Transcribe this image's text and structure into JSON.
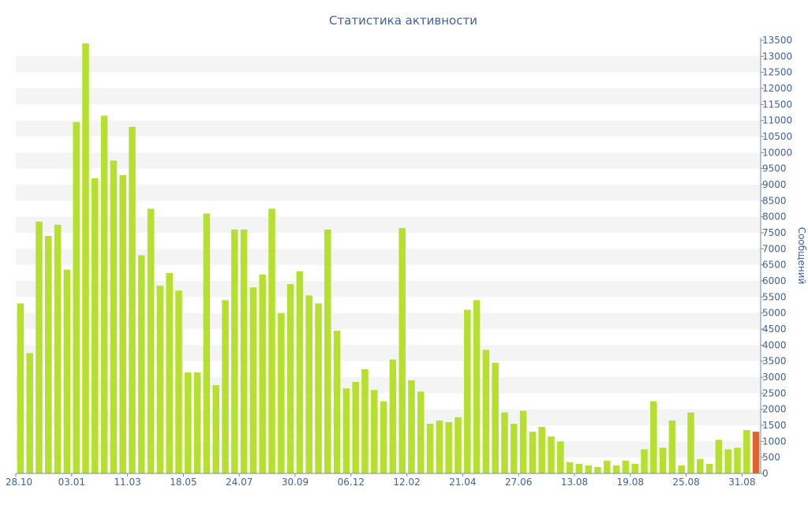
{
  "chart_data": {
    "type": "bar",
    "title": "Статистика активности",
    "ylabel": "Сообщений",
    "xlabel": "",
    "ylim": [
      0,
      13500
    ],
    "y_ticks": [
      0,
      500,
      1000,
      1500,
      2000,
      2500,
      3000,
      3500,
      4000,
      4500,
      5000,
      5500,
      6000,
      6500,
      7000,
      7500,
      8000,
      8500,
      9000,
      9500,
      10000,
      10500,
      11000,
      11500,
      12000,
      12500,
      13000,
      13500
    ],
    "y_axis_position": "right",
    "x_tick_labels": [
      {
        "index": 0,
        "label": "28.10"
      },
      {
        "index": 6,
        "label": "03.01"
      },
      {
        "index": 12,
        "label": "11.03"
      },
      {
        "index": 18,
        "label": "18.05"
      },
      {
        "index": 24,
        "label": "24.07"
      },
      {
        "index": 30,
        "label": "30.09"
      },
      {
        "index": 36,
        "label": "06.12"
      },
      {
        "index": 42,
        "label": "12.02"
      },
      {
        "index": 48,
        "label": "21.04"
      },
      {
        "index": 54,
        "label": "27.06"
      },
      {
        "index": 60,
        "label": "13.08"
      },
      {
        "index": 66,
        "label": "19.08"
      },
      {
        "index": 72,
        "label": "25.08"
      },
      {
        "index": 78,
        "label": "31.08"
      }
    ],
    "grid": "horizontal bands",
    "colors": {
      "bar": "#b5e030",
      "highlight": "#e0632c",
      "band": "#f4f4f4",
      "text": "#44609a"
    },
    "highlight_last": true,
    "values": [
      5300,
      3750,
      7850,
      7400,
      7750,
      6350,
      10950,
      13400,
      9200,
      11150,
      9750,
      9300,
      10800,
      6800,
      8250,
      5850,
      6250,
      5700,
      3150,
      3150,
      8100,
      2750,
      5400,
      7600,
      7600,
      5800,
      6200,
      8250,
      5000,
      5900,
      6300,
      5550,
      5300,
      7600,
      4450,
      2650,
      2850,
      3250,
      2600,
      2250,
      3550,
      7650,
      2900,
      2550,
      1550,
      1650,
      1600,
      1750,
      5100,
      5400,
      3850,
      3450,
      1900,
      1550,
      1950,
      1300,
      1450,
      1150,
      1000,
      350,
      300,
      250,
      200,
      400,
      250,
      400,
      300,
      750,
      2250,
      800,
      1650,
      250,
      1900,
      450,
      300,
      1050,
      750,
      800,
      1350,
      1300
    ]
  }
}
